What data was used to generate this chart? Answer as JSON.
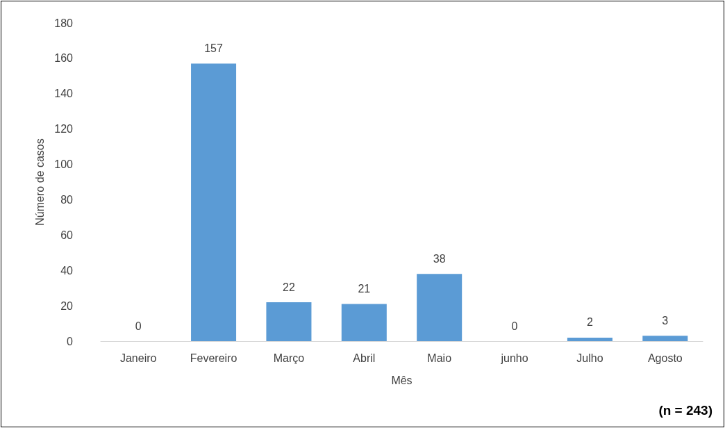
{
  "chart_data": {
    "type": "bar",
    "xlabel": "Mês",
    "ylabel": "Número de casos",
    "categories": [
      "Janeiro",
      "Fevereiro",
      "Março",
      "Abril",
      "Maio",
      "junho",
      "Julho",
      "Agosto"
    ],
    "values": [
      0,
      157,
      22,
      21,
      38,
      0,
      2,
      3
    ],
    "color": "#5b9bd5",
    "ylim": [
      0,
      180
    ],
    "yticks": [
      0,
      20,
      40,
      60,
      80,
      100,
      120,
      140,
      160,
      180
    ],
    "grid": false,
    "data_labels": true,
    "annotations": [
      "(n = 243)"
    ]
  }
}
